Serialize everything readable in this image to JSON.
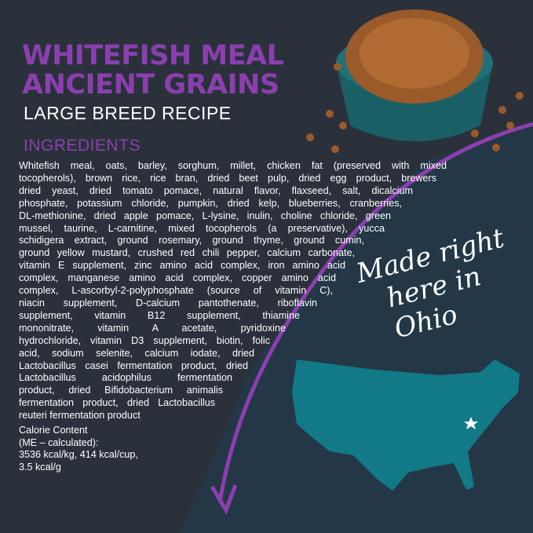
{
  "title_line1": "WHITEFISH MEAL",
  "title_line2": "ANCIENT GRAINS",
  "subtitle": "LARGE BREED RECIPE",
  "ingredients_heading": "INGREDIENTS",
  "ingredient_lines": [
    "Whitefish meal, oats, barley, sorghum, millet, chicken fat (preserved with mixed",
    "tocopherols), brown rice, rice bran, dried beet pulp, dried egg product, brewers",
    "dried yeast, dried tomato pomace, natural flavor, flaxseed, salt, dicalcium",
    "phosphate, potassium chloride, pumpkin, dried kelp, blueberries, cranberries,",
    "DL-methionine, dried apple pomace, L-lysine, inulin, choline chloride, green",
    "mussel, taurine, L-carnitine, mixed tocopherols (a preservative), yucca",
    "schidigera extract, ground rosemary, ground thyme, ground cumin,",
    "ground yellow mustard, crushed red chili pepper, calcium carbonate,",
    "vitamin E supplement, zinc amino acid complex, iron amino acid",
    "complex, manganese amino acid complex, copper amino acid",
    "complex, L-ascorbyl-2-polyphosphate (source of vitamin C),",
    "niacin supplement, D-calcium pantothenate, riboflavin",
    "supplement, vitamin B12 supplement, thiamine",
    "mononitrate, vitamin A acetate, pyridoxine",
    "hydrochloride, vitamin D3 supplement, biotin, folic",
    "acid, sodium selenite, calcium iodate, dried",
    "Lactobacillus casei fermentation product, dried",
    "Lactobacillus acidophilus fermentation",
    "product, dried Bifidobacterium animalis",
    "fermentation product, dried Lactobacillus",
    "reuteri fermentation product"
  ],
  "calorie_lines": [
    "Calorie Content",
    "(ME – calculated):",
    "3536 kcal/kg, 414 kcal/cup,",
    "3.5 kcal/g"
  ],
  "tagline_lines": [
    "Made right",
    "here in Ohio"
  ],
  "colors": {
    "background": "#2a313b",
    "lower_panel": "#243747",
    "accent_purple": "#8b3fae",
    "map_teal": "#127a87",
    "bowl_teal": "#1a5f66"
  },
  "icons": [
    "kibble-bowl-image",
    "us-map-image",
    "star-icon-ohio"
  ]
}
